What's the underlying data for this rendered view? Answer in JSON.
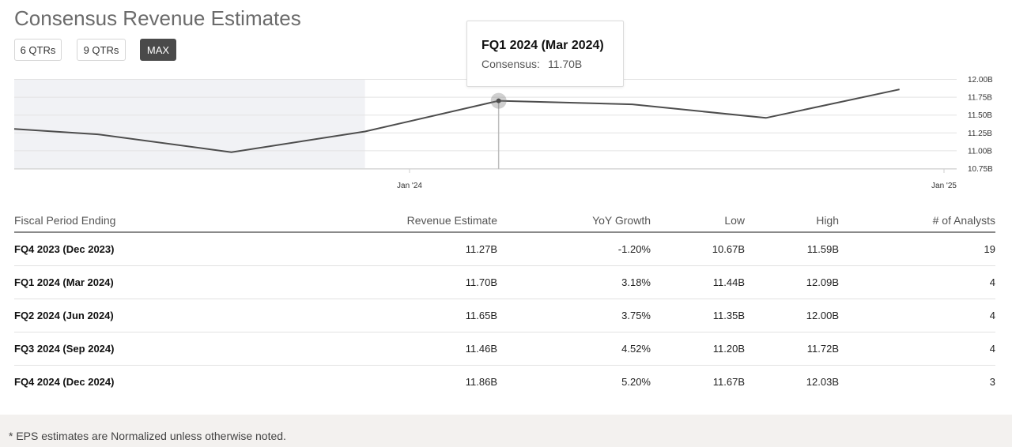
{
  "title": "Consensus Revenue Estimates",
  "range_buttons": [
    {
      "label": "6 QTRs",
      "active": false
    },
    {
      "label": "9 QTRs",
      "active": false
    },
    {
      "label": "MAX",
      "active": true
    }
  ],
  "tooltip": {
    "title": "FQ1 2024 (Mar 2024)",
    "label": "Consensus:",
    "value": "11.70B"
  },
  "chart_data": {
    "type": "line",
    "series": [
      {
        "points": [
          {
            "x": "2023-03",
            "y": 11.35
          },
          {
            "x": "2023-06",
            "y": 11.23
          },
          {
            "x": "2023-09",
            "y": 10.98
          },
          {
            "x": "2023-12",
            "y": 11.27
          },
          {
            "x": "2024-03",
            "y": 11.7
          },
          {
            "x": "2024-06",
            "y": 11.65
          },
          {
            "x": "2024-09",
            "y": 11.46
          },
          {
            "x": "2024-12",
            "y": 11.86
          }
        ]
      }
    ],
    "ylim": [
      10.75,
      12.0
    ],
    "yticks": [
      "12.00B",
      "11.75B",
      "11.50B",
      "11.25B",
      "11.00B",
      "10.75B"
    ],
    "xticks": [
      "Jan '24",
      "Jan '25"
    ],
    "grid": true,
    "highlighted_point": "2024-03",
    "historical_shade_until": "2023-12",
    "colors": {
      "line": "#4d4d4d",
      "shade": "#f1f2f5",
      "grid": "#e3e3e3"
    }
  },
  "table": {
    "headers": [
      "Fiscal Period Ending",
      "Revenue Estimate",
      "YoY Growth",
      "Low",
      "High",
      "# of Analysts"
    ],
    "rows": [
      [
        "FQ4 2023 (Dec 2023)",
        "11.27B",
        "-1.20%",
        "10.67B",
        "11.59B",
        "19"
      ],
      [
        "FQ1 2024 (Mar 2024)",
        "11.70B",
        "3.18%",
        "11.44B",
        "12.09B",
        "4"
      ],
      [
        "FQ2 2024 (Jun 2024)",
        "11.65B",
        "3.75%",
        "11.35B",
        "12.00B",
        "4"
      ],
      [
        "FQ3 2024 (Sep 2024)",
        "11.46B",
        "4.52%",
        "11.20B",
        "11.72B",
        "4"
      ],
      [
        "FQ4 2024 (Dec 2024)",
        "11.86B",
        "5.20%",
        "11.67B",
        "12.03B",
        "3"
      ]
    ]
  },
  "footer_note": "* EPS estimates are Normalized unless otherwise noted."
}
